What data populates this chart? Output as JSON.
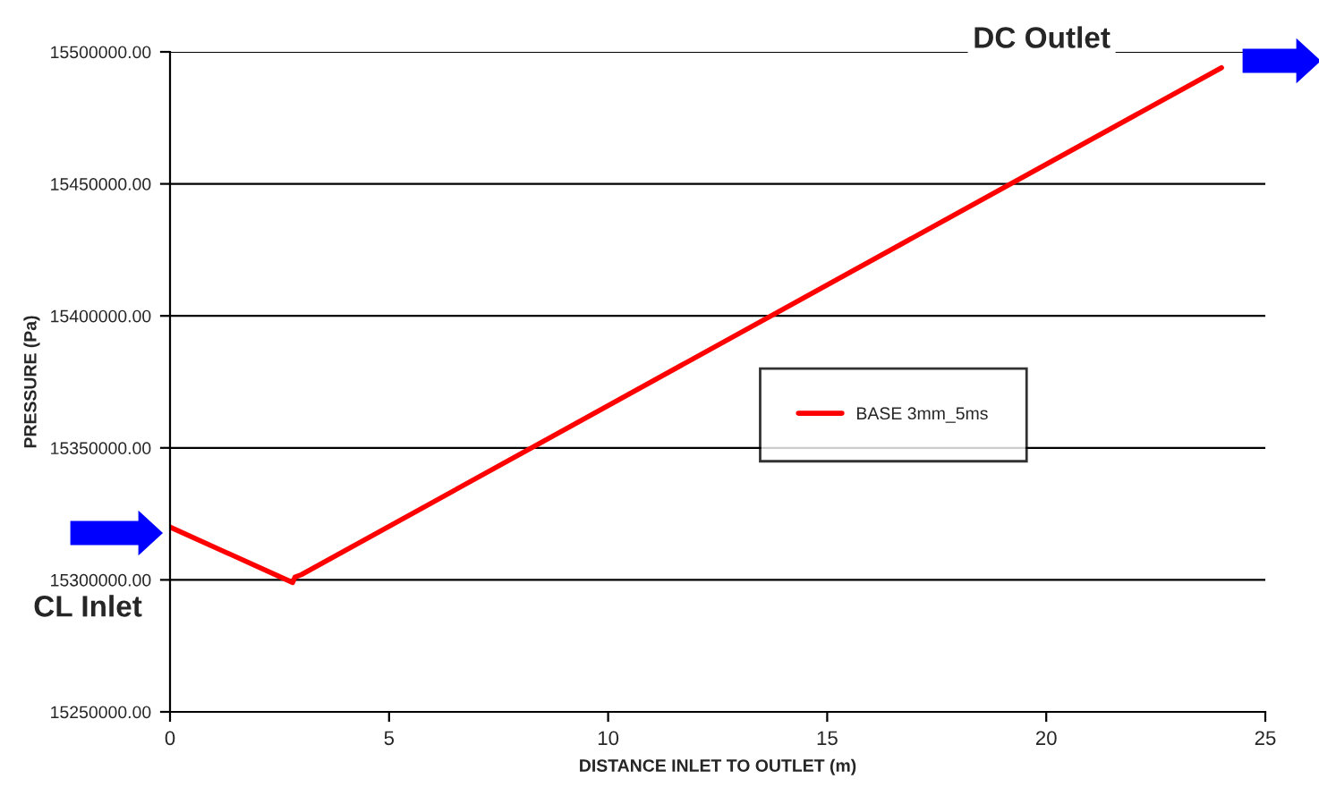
{
  "chart_data": {
    "type": "line",
    "xlabel": "DISTANCE INLET TO OUTLET (m)",
    "ylabel": "PRESSURE (Pa)",
    "x": [
      0,
      2.8,
      2.85,
      3.0,
      24
    ],
    "series": [
      {
        "name": "BASE 3mm_5ms",
        "color": "#ff0000",
        "values": [
          15320000,
          15299000,
          15301000,
          15302000,
          15494000
        ]
      }
    ],
    "xlim": [
      0,
      25
    ],
    "xticks": [
      0,
      5,
      10,
      15,
      20,
      25
    ],
    "ylim": [
      15250000,
      15500000
    ],
    "yticks": [
      {
        "value": 15250000,
        "label": "15250000.00"
      },
      {
        "value": 15300000,
        "label": "15300000.00"
      },
      {
        "value": 15350000,
        "label": "15350000.00"
      },
      {
        "value": 15400000,
        "label": "15400000.00"
      },
      {
        "value": 15450000,
        "label": "15450000.00"
      },
      {
        "value": 15500000,
        "label": "15500000.00"
      }
    ],
    "grid": "y",
    "legend": "right",
    "marker": "none",
    "line_style": "solid",
    "annotations": [
      "CL Inlet",
      "DC Outlet"
    ]
  }
}
